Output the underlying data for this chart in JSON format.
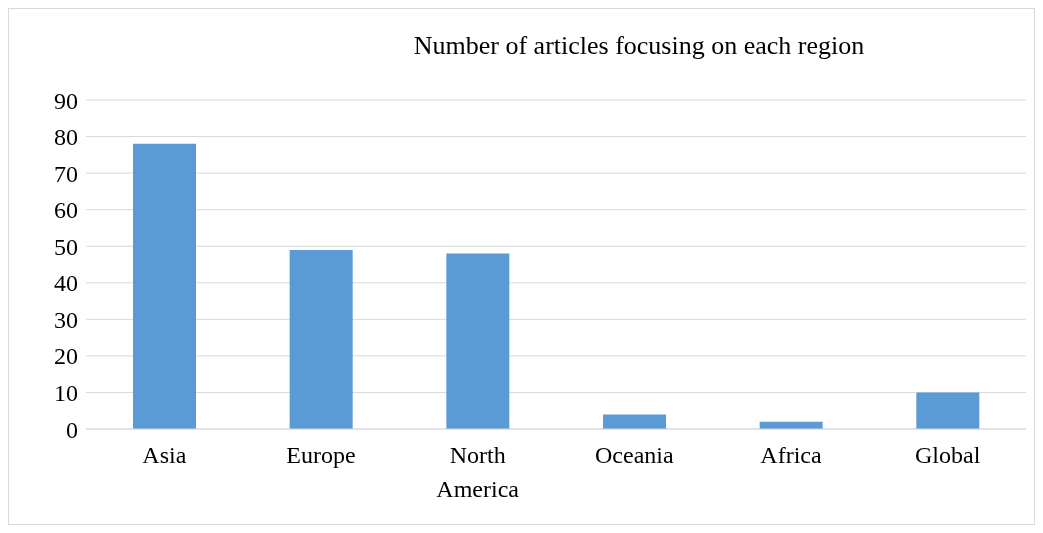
{
  "chart_data": {
    "type": "bar",
    "title": "Number of articles focusing on each region",
    "categories": [
      "Asia",
      "Europe",
      "North America",
      "Oceania",
      "Africa",
      "Global"
    ],
    "values": [
      78,
      49,
      48,
      4,
      2,
      10
    ],
    "color": "#5b9bd5",
    "ylim": [
      0,
      90
    ],
    "yticks": [
      0,
      10,
      20,
      30,
      40,
      50,
      60,
      70,
      80,
      90
    ],
    "grid": "y"
  }
}
